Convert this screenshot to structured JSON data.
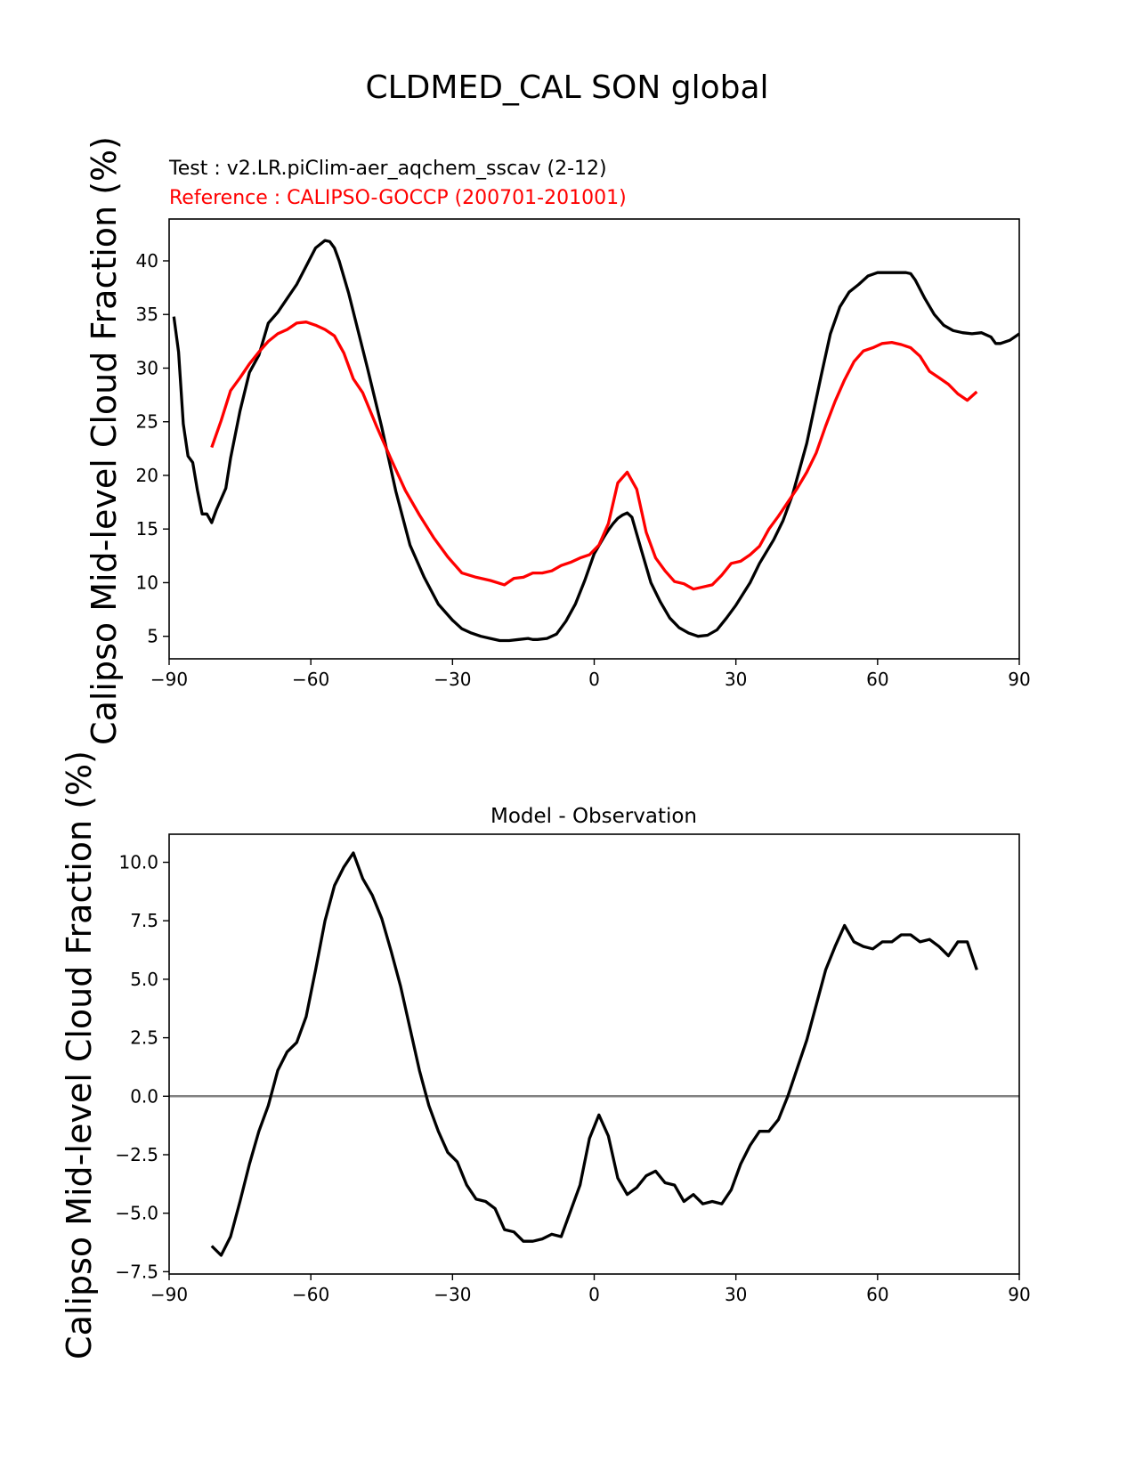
{
  "figure": {
    "title": "CLDMED_CAL SON global"
  },
  "chart_data": [
    {
      "type": "line",
      "title": "",
      "info_test": "Test : v2.LR.piClim-aer_aqchem_sscav (2-12)",
      "info_reference": "Reference : CALIPSO-GOCCP (200701-201001)",
      "xlabel": "",
      "ylabel": "Calipso Mid-level Cloud Fraction (%)",
      "xlim": [
        -90,
        90
      ],
      "ylim": [
        2.9,
        43.9
      ],
      "xticks": [
        -90,
        -60,
        -30,
        0,
        30,
        60,
        90
      ],
      "xtick_labels": [
        "−90",
        "−60",
        "−30",
        "0",
        "30",
        "60",
        "90"
      ],
      "yticks": [
        5,
        10,
        15,
        20,
        25,
        30,
        35,
        40
      ],
      "ytick_labels": [
        "5",
        "10",
        "15",
        "20",
        "25",
        "30",
        "35",
        "40"
      ],
      "series": [
        {
          "name": "Test",
          "color": "#000000",
          "x": [
            -89,
            -88,
            -87,
            -86,
            -85,
            -84,
            -83,
            -82,
            -81,
            -80,
            -79,
            -78,
            -77,
            -75,
            -73,
            -71,
            -69,
            -67,
            -65,
            -63,
            -61,
            -59,
            -57,
            -56,
            -55,
            -54,
            -52,
            -50,
            -48,
            -45,
            -42,
            -39,
            -36,
            -33,
            -30,
            -28,
            -26,
            -24,
            -22,
            -20,
            -18,
            -16,
            -14,
            -13,
            -12,
            -10,
            -8,
            -6,
            -4,
            -2,
            0,
            2,
            3,
            4,
            5,
            6,
            7,
            8,
            10,
            12,
            14,
            16,
            18,
            20,
            22,
            24,
            26,
            28,
            30,
            33,
            35,
            38,
            40,
            42,
            45,
            48,
            50,
            52,
            54,
            56,
            58,
            60,
            62,
            64,
            66,
            67,
            68,
            70,
            72,
            74,
            76,
            78,
            80,
            82,
            84,
            85,
            86,
            88,
            90
          ],
          "y": [
            34.8,
            31.5,
            24.8,
            21.8,
            21.2,
            18.6,
            16.4,
            16.4,
            15.6,
            16.8,
            17.8,
            18.8,
            21.6,
            26,
            29.6,
            31.2,
            34.2,
            35.2,
            36.5,
            37.8,
            39.5,
            41.2,
            41.9,
            41.8,
            41.2,
            40,
            37,
            33.5,
            30,
            24.5,
            18.5,
            13.5,
            10.5,
            8,
            6.5,
            5.7,
            5.3,
            5,
            4.8,
            4.6,
            4.6,
            4.7,
            4.8,
            4.7,
            4.7,
            4.8,
            5.2,
            6.4,
            8,
            10.2,
            12.7,
            14.2,
            14.9,
            15.5,
            16,
            16.3,
            16.5,
            16.1,
            13,
            10,
            8.2,
            6.7,
            5.8,
            5.3,
            5,
            5.1,
            5.6,
            6.7,
            7.9,
            10,
            11.8,
            14,
            15.8,
            18.2,
            23,
            29.2,
            33.2,
            35.7,
            37.1,
            37.8,
            38.6,
            38.9,
            38.9,
            38.9,
            38.9,
            38.8,
            38.2,
            36.5,
            35,
            34,
            33.5,
            33.3,
            33.2,
            33.3,
            32.9,
            32.3,
            32.3,
            32.6,
            33.2
          ]
        },
        {
          "name": "Reference",
          "color": "#ff0000",
          "x": [
            -81,
            -79,
            -77,
            -75,
            -73,
            -71,
            -69,
            -67,
            -65,
            -63,
            -61,
            -59,
            -57,
            -55,
            -53,
            -51,
            -49,
            -46,
            -43,
            -40,
            -37,
            -34,
            -31,
            -28,
            -25,
            -22,
            -19,
            -17,
            -15,
            -13,
            -11,
            -9,
            -7,
            -5,
            -3,
            -1,
            1,
            3,
            5,
            7,
            9,
            11,
            13,
            15,
            17,
            19,
            21,
            23,
            25,
            27,
            29,
            31,
            33,
            35,
            37,
            39,
            41,
            43,
            45,
            47,
            49,
            51,
            53,
            55,
            57,
            59,
            61,
            63,
            65,
            67,
            69,
            71,
            73,
            75,
            77,
            79,
            81
          ],
          "y": [
            22.6,
            25.1,
            27.9,
            29.1,
            30.4,
            31.5,
            32.5,
            33.2,
            33.6,
            34.2,
            34.3,
            34,
            33.6,
            33,
            31.4,
            29,
            27.7,
            24.5,
            21.5,
            18.6,
            16.3,
            14.2,
            12.4,
            10.9,
            10.5,
            10.2,
            9.8,
            10.4,
            10.5,
            10.9,
            10.9,
            11.1,
            11.6,
            11.9,
            12.3,
            12.6,
            13.5,
            15.5,
            19.3,
            20.3,
            18.7,
            14.7,
            12.3,
            11.1,
            10.1,
            9.9,
            9.4,
            9.6,
            9.8,
            10.7,
            11.8,
            12,
            12.6,
            13.4,
            15,
            16.2,
            17.5,
            18.8,
            20.3,
            22.1,
            24.6,
            26.9,
            28.9,
            30.6,
            31.6,
            31.9,
            32.3,
            32.4,
            32.2,
            31.9,
            31.1,
            29.7,
            29.1,
            28.5,
            27.6,
            27,
            27.8
          ]
        }
      ]
    },
    {
      "type": "line",
      "title": "Model - Observation",
      "xlabel": "",
      "ylabel": "Calipso Mid-level Cloud Fraction (%)",
      "xlim": [
        -90,
        90
      ],
      "ylim": [
        -7.6,
        11.2
      ],
      "xticks": [
        -90,
        -60,
        -30,
        0,
        30,
        60,
        90
      ],
      "xtick_labels": [
        "−90",
        "−60",
        "−30",
        "0",
        "30",
        "60",
        "90"
      ],
      "yticks": [
        -7.5,
        -5.0,
        -2.5,
        0.0,
        2.5,
        5.0,
        7.5,
        10.0
      ],
      "ytick_labels": [
        "−7.5",
        "−5.0",
        "−2.5",
        "0.0",
        "2.5",
        "5.0",
        "7.5",
        "10.0"
      ],
      "zero_line_color": "#808080",
      "series": [
        {
          "name": "Model - Observation",
          "color": "#000000",
          "x": [
            -81,
            -79,
            -77,
            -75,
            -73,
            -71,
            -69,
            -67,
            -65,
            -63,
            -61,
            -59,
            -57,
            -55,
            -53,
            -51,
            -49,
            -47,
            -45,
            -43,
            -41,
            -39,
            -37,
            -35,
            -33,
            -31,
            -29,
            -27,
            -25,
            -23,
            -21,
            -19,
            -17,
            -15,
            -13,
            -11,
            -9,
            -7,
            -5,
            -3,
            -1,
            1,
            3,
            5,
            7,
            9,
            11,
            13,
            15,
            17,
            19,
            21,
            23,
            25,
            27,
            29,
            31,
            33,
            35,
            37,
            39,
            41,
            43,
            45,
            47,
            49,
            51,
            53,
            55,
            57,
            59,
            61,
            63,
            65,
            67,
            69,
            71,
            73,
            75,
            77,
            79,
            81
          ],
          "y": [
            -6.4,
            -6.8,
            -6.0,
            -4.5,
            -2.9,
            -1.5,
            -0.4,
            1.1,
            1.9,
            2.3,
            3.4,
            5.4,
            7.5,
            9.0,
            9.8,
            10.4,
            9.3,
            8.6,
            7.6,
            6.2,
            4.7,
            2.9,
            1.1,
            -0.4,
            -1.5,
            -2.4,
            -2.8,
            -3.8,
            -4.4,
            -4.5,
            -4.8,
            -5.7,
            -5.8,
            -6.2,
            -6.2,
            -6.1,
            -5.9,
            -6.0,
            -4.9,
            -3.8,
            -1.8,
            -0.8,
            -1.7,
            -3.5,
            -4.2,
            -3.9,
            -3.4,
            -3.2,
            -3.7,
            -3.8,
            -4.5,
            -4.2,
            -4.6,
            -4.5,
            -4.6,
            -4.0,
            -2.9,
            -2.1,
            -1.5,
            -1.5,
            -1.0,
            0.0,
            1.2,
            2.4,
            3.9,
            5.4,
            6.4,
            7.3,
            6.6,
            6.4,
            6.3,
            6.6,
            6.6,
            6.9,
            6.9,
            6.6,
            6.7,
            6.4,
            6.0,
            6.6,
            6.6,
            5.4
          ]
        }
      ]
    }
  ]
}
